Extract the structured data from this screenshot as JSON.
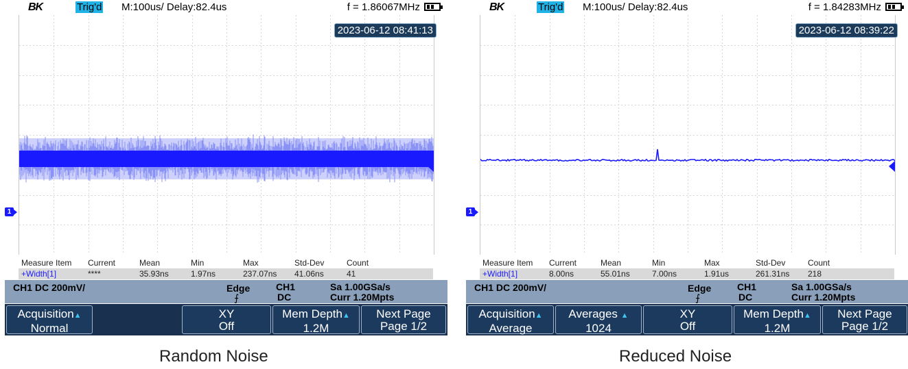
{
  "panels": [
    {
      "id": "left",
      "brand": "BK",
      "trig_status": "Trig'd",
      "timebase": "M:100us/ Delay:82.4us",
      "frequency": "f = 1.86067MHz",
      "timestamp": "2023-06-12 08:41:13",
      "channel_marker": "1",
      "measure": {
        "headers": [
          "Measure Item",
          "Current",
          "Mean",
          "Min",
          "Max",
          "Std-Dev",
          "Count"
        ],
        "values": [
          "+Width[1]",
          "****",
          "35.93ns",
          "1.97ns",
          "237.07ns",
          "41.06ns",
          "41"
        ]
      },
      "info": {
        "channel": "CH1 DC 200mV/",
        "trigger_type": "Edge",
        "trigger_source": "CH1",
        "trigger_coupling": "DC",
        "sample_rate": "Sa 1.00GSa/s",
        "memory": "Curr 1.20Mpts"
      },
      "softkeys": [
        {
          "line1": "Acquisition",
          "line2": "Normal"
        },
        {
          "line1": "",
          "line2": ""
        },
        {
          "line1": "XY",
          "line2": "Off"
        },
        {
          "line1": "Mem Depth",
          "line2": "1.2M"
        },
        {
          "line1": "Next Page",
          "line2": "Page 1/2"
        }
      ],
      "caption": "Random Noise",
      "trace_color": "#1a1aff"
    },
    {
      "id": "right",
      "brand": "BK",
      "trig_status": "Trig'd",
      "timebase": "M:100us/ Delay:82.4us",
      "frequency": "f = 1.84283MHz",
      "timestamp": "2023-06-12 08:39:22",
      "channel_marker": "1",
      "measure": {
        "headers": [
          "Measure Item",
          "Current",
          "Mean",
          "Min",
          "Max",
          "Std-Dev",
          "Count"
        ],
        "values": [
          "+Width[1]",
          "8.00ns",
          "55.01ns",
          "7.00ns",
          "1.91us",
          "261.31ns",
          "218"
        ]
      },
      "info": {
        "channel": "CH1 DC 200mV/",
        "trigger_type": "Edge",
        "trigger_source": "CH1",
        "trigger_coupling": "DC",
        "sample_rate": "Sa 1.00GSa/s",
        "memory": "Curr 1.20Mpts"
      },
      "softkeys": [
        {
          "line1": "Acquisition",
          "line2": "Average"
        },
        {
          "line1": "Averages",
          "line2": "1024"
        },
        {
          "line1": "XY",
          "line2": "Off"
        },
        {
          "line1": "Mem Depth",
          "line2": "1.2M"
        },
        {
          "line1": "Next Page",
          "line2": "Page 1/2"
        }
      ],
      "caption": "Reduced Noise",
      "trace_color": "#1a1aff"
    }
  ]
}
